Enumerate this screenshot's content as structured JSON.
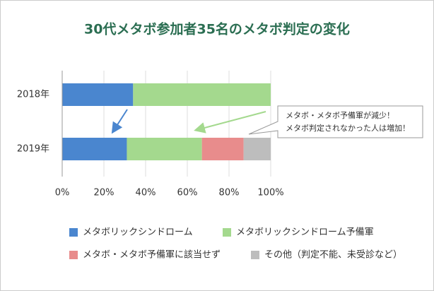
{
  "chart_data": {
    "type": "stacked-barh",
    "title": "30代メタボ参加者35名のメタボ判定の変化",
    "categories": [
      "2018年",
      "2019年"
    ],
    "series": [
      {
        "name": "メタボリックシンドローム",
        "color": "#4a86cf",
        "values": [
          34,
          31
        ]
      },
      {
        "name": "メタボリックシンドローム予備軍",
        "color": "#a4d98e",
        "values": [
          66,
          36
        ]
      },
      {
        "name": "メタボ・メタボ予備軍に該当せず",
        "color": "#e88c8c",
        "values": [
          0,
          20
        ]
      },
      {
        "name": "その他（判定不能、未受診など）",
        "color": "#bdbdbd",
        "values": [
          0,
          13
        ]
      }
    ],
    "xlim": [
      0,
      100
    ],
    "xticks": [
      {
        "value": 0,
        "label": "0%"
      },
      {
        "value": 20,
        "label": "20%"
      },
      {
        "value": 40,
        "label": "40%"
      },
      {
        "value": 60,
        "label": "60%"
      },
      {
        "value": 80,
        "label": "80%"
      },
      {
        "value": 100,
        "label": "100%"
      }
    ],
    "grid": true,
    "annotation": [
      "メタボ・メタボ予備軍が減少！",
      "メタボ判定されなかった人は増加！"
    ]
  }
}
